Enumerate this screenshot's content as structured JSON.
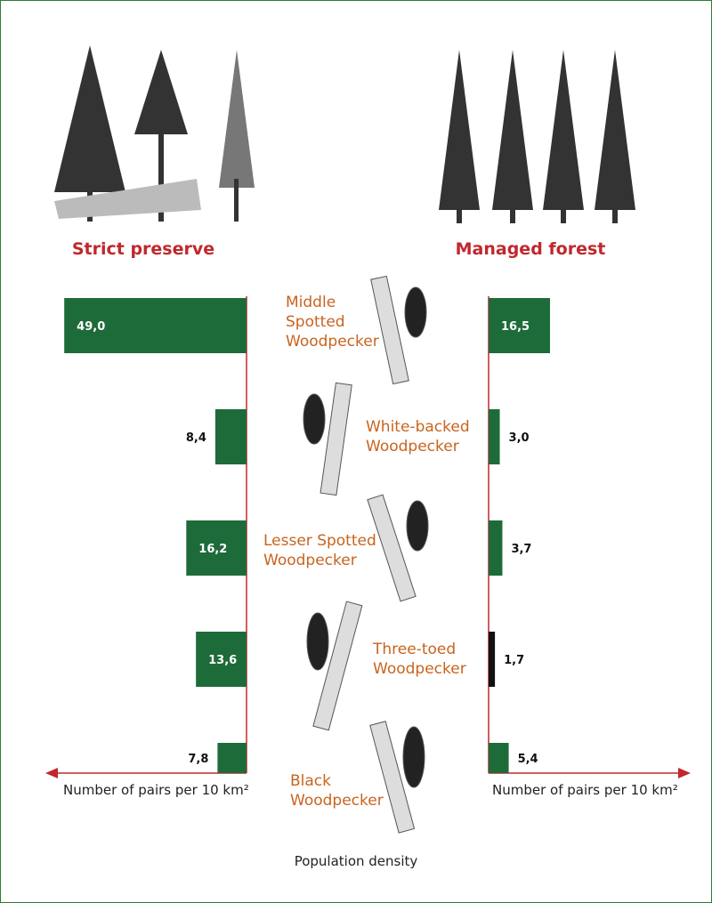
{
  "chart_data": {
    "type": "bar",
    "categories": [
      "Middle Spotted Woodpecker",
      "White-backed Woodpecker",
      "Lesser Spotted Woodpecker",
      "Three-toed Woodpecker",
      "Black Woodpecker"
    ],
    "series": [
      {
        "name": "Strict preserve",
        "colors": [
          "#1e6b3a",
          "#1e6b3a",
          "#1e6b3a",
          "#1e6b3a",
          "#1e6b3a"
        ],
        "values": [
          49.0,
          8.4,
          16.2,
          13.6,
          7.8
        ],
        "value_labels": [
          "49,0",
          "8,4",
          "16,2",
          "13,6",
          "7,8"
        ],
        "axis_label": "Number of pairs per 10 km²"
      },
      {
        "name": "Managed forest",
        "colors": [
          "#1e6b3a",
          "#1e6b3a",
          "#1e6b3a",
          "#111111",
          "#1e6b3a"
        ],
        "values": [
          16.5,
          3.0,
          3.7,
          1.7,
          5.4
        ],
        "value_labels": [
          "16,5",
          "3,0",
          "3,7",
          "1,7",
          "5,4"
        ],
        "axis_label": "Number of pairs per 10 km²"
      }
    ],
    "xlim": [
      0,
      50
    ],
    "caption": "Population density"
  }
}
